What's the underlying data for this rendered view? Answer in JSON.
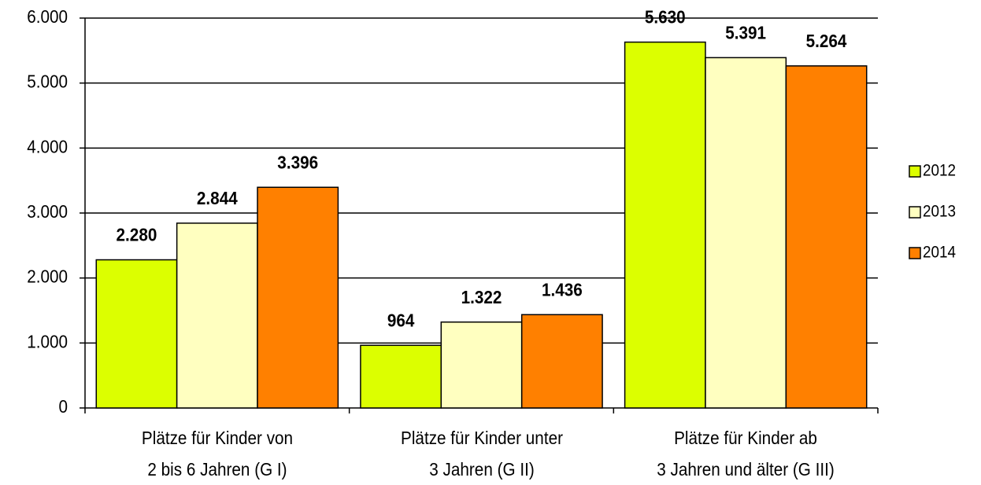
{
  "chart_data": {
    "type": "bar",
    "categories": [
      "Plätze für Kinder von\n2 bis 6 Jahren (G I)",
      "Plätze für Kinder unter\n3 Jahren (G II)",
      "Plätze für Kinder ab\n3 Jahren und älter (G III)"
    ],
    "series": [
      {
        "name": "2012",
        "color": "#dcff00",
        "values": [
          2280,
          964,
          5630
        ],
        "value_labels": [
          "2.280",
          "964",
          "5.630"
        ]
      },
      {
        "name": "2013",
        "color": "#ffffc0",
        "values": [
          2844,
          1322,
          5391
        ],
        "value_labels": [
          "2.844",
          "1.322",
          "5.391"
        ]
      },
      {
        "name": "2014",
        "color": "#ff8000",
        "values": [
          3396,
          1436,
          5264
        ],
        "value_labels": [
          "3.396",
          "1.436",
          "5.264"
        ]
      }
    ],
    "ylim": [
      0,
      6000
    ],
    "yticks": [
      0,
      {
        "value": 1000,
        "label": "1.000"
      },
      {
        "value": 2000,
        "label": "2.000"
      },
      {
        "value": 3000,
        "label": "3.000"
      },
      {
        "value": 4000,
        "label": "4.000"
      },
      {
        "value": 5000,
        "label": "5.000"
      },
      {
        "value": 6000,
        "label": "6.000"
      }
    ],
    "grid": true,
    "legend": "right"
  }
}
